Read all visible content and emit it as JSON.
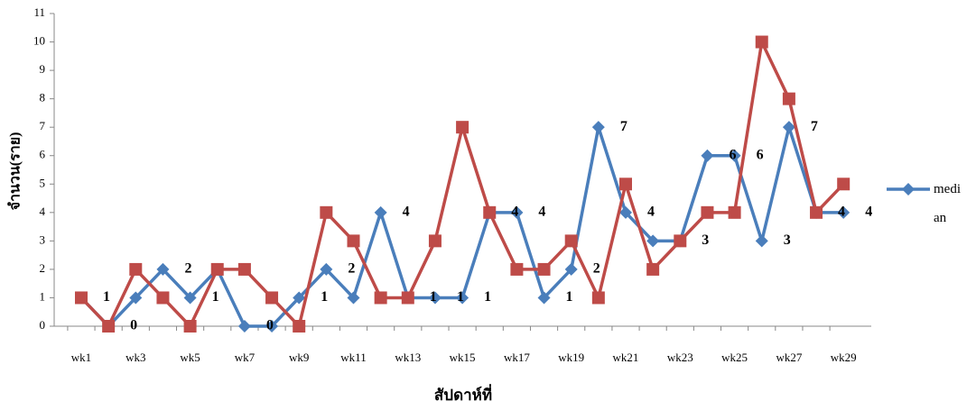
{
  "chart_data": {
    "type": "line",
    "x_label": "สัปดาห์ที่",
    "y_label": "จำนวน(ราย)",
    "categories": [
      "wk1",
      null,
      "wk3",
      null,
      "wk5",
      null,
      "wk7",
      null,
      "wk9",
      null,
      "wk11",
      null,
      "wk13",
      null,
      "wk15",
      null,
      "wk17",
      null,
      "wk19",
      null,
      "wk21",
      null,
      "wk23",
      null,
      "wk25",
      null,
      "wk27",
      null,
      "wk29"
    ],
    "series": [
      {
        "name": "median",
        "color": "#4a7ebb",
        "marker": "diamond",
        "data_labels": true,
        "values": [
          1,
          0,
          1,
          2,
          1,
          2,
          0,
          0,
          1,
          2,
          1,
          4,
          1,
          1,
          1,
          4,
          4,
          1,
          2,
          7,
          4,
          3,
          3,
          6,
          6,
          3,
          7,
          4,
          4
        ]
      },
      {
        "color": "#be4b48",
        "marker": "square",
        "values": [
          1,
          0,
          2,
          1,
          0,
          2,
          2,
          1,
          0,
          4,
          3,
          1,
          1,
          3,
          7,
          4,
          2,
          2,
          3,
          1,
          5,
          2,
          3,
          4,
          4,
          10,
          8,
          4,
          5
        ]
      }
    ],
    "ylim": [
      0,
      11
    ],
    "yticks": [
      0,
      1,
      2,
      3,
      4,
      5,
      6,
      7,
      8,
      9,
      10,
      11
    ],
    "grid": false
  }
}
